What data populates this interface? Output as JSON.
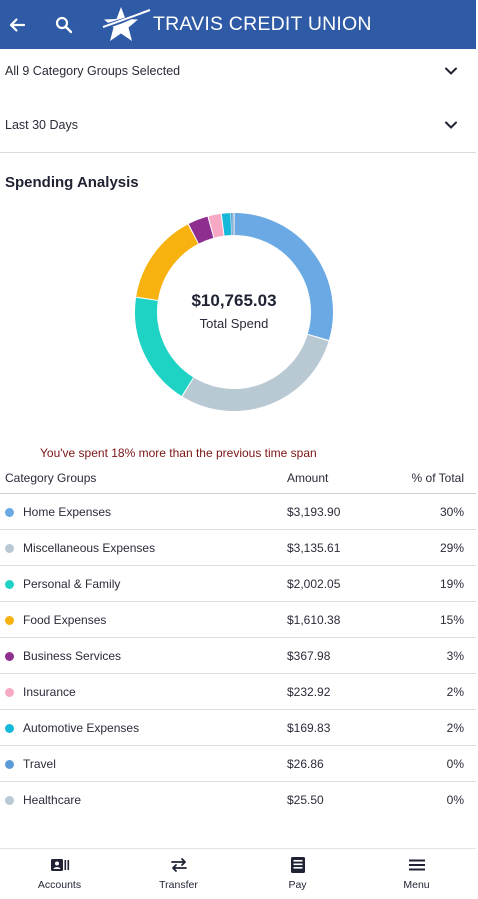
{
  "header": {
    "brand": "TRAVIS CREDIT UNION",
    "icons": [
      "back-arrow-icon",
      "search-icon",
      "star-logo-icon"
    ],
    "color": "#2e5aa6"
  },
  "filters": {
    "category_groups": "All 9 Category Groups Selected",
    "time_span": "Last 30 Days"
  },
  "analysis": {
    "title": "Spending Analysis",
    "total_amount": "$10,765.03",
    "total_label": "Total Spend",
    "comparison_text": "You've spent 18% more than the previous time span"
  },
  "chart_data": {
    "type": "pie",
    "categories": [
      "Home Expenses",
      "Miscellaneous Expenses",
      "Personal & Family",
      "Food Expenses",
      "Business Services",
      "Insurance",
      "Automotive Expenses",
      "Travel",
      "Healthcare"
    ],
    "values": [
      3193.9,
      3135.61,
      2002.05,
      1610.38,
      367.98,
      232.92,
      169.83,
      26.86,
      25.5
    ],
    "colors": [
      "#6aa9e3",
      "#b8c9d3",
      "#1fd3c4",
      "#f7b20f",
      "#8e2f8f",
      "#f7a8c4",
      "#16b8d9",
      "#5b9bd5",
      "#b8c9d3"
    ]
  },
  "table": {
    "headers": {
      "category": "Category Groups",
      "amount": "Amount",
      "percent": "% of Total"
    },
    "rows": [
      {
        "name": "Home Expenses",
        "amount": "$3,193.90",
        "percent": "30%",
        "color": "#6aa9e3"
      },
      {
        "name": "Miscellaneous Expenses",
        "amount": "$3,135.61",
        "percent": "29%",
        "color": "#b8c9d3"
      },
      {
        "name": "Personal & Family",
        "amount": "$2,002.05",
        "percent": "19%",
        "color": "#1fd3c4"
      },
      {
        "name": "Food Expenses",
        "amount": "$1,610.38",
        "percent": "15%",
        "color": "#f7b20f"
      },
      {
        "name": "Business Services",
        "amount": "$367.98",
        "percent": "3%",
        "color": "#8e2f8f"
      },
      {
        "name": "Insurance",
        "amount": "$232.92",
        "percent": "2%",
        "color": "#f7a8c4"
      },
      {
        "name": "Automotive Expenses",
        "amount": "$169.83",
        "percent": "2%",
        "color": "#16b8d9"
      },
      {
        "name": "Travel",
        "amount": "$26.86",
        "percent": "0%",
        "color": "#5b9bd5"
      },
      {
        "name": "Healthcare",
        "amount": "$25.50",
        "percent": "0%",
        "color": "#b8c9d3"
      }
    ]
  },
  "bottom_nav": {
    "items": [
      {
        "label": "Accounts",
        "icon": "accounts-icon"
      },
      {
        "label": "Transfer",
        "icon": "transfer-icon"
      },
      {
        "label": "Pay",
        "icon": "pay-icon"
      },
      {
        "label": "Menu",
        "icon": "menu-icon"
      }
    ]
  }
}
